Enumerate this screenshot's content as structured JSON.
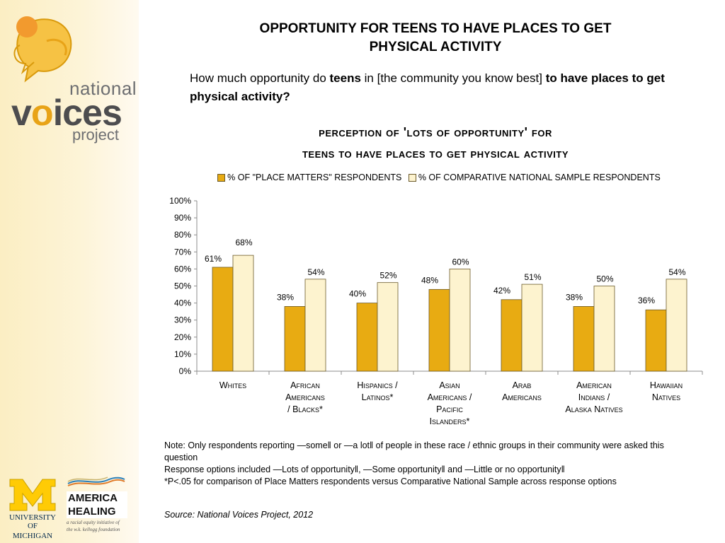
{
  "branding": {
    "logo_national": "national",
    "logo_voices_v": "v",
    "logo_voices_o": "o",
    "logo_voices_rest": "ices",
    "logo_project": "project",
    "umich_line1": "UNIVERSITY OF",
    "umich_line2": "MICHIGAN",
    "america_line1": "AMERICA",
    "america_line2": "HEALING",
    "america_tagline_1": "a racial equity initiative of",
    "america_tagline_2": "the w.k. kellogg foundation"
  },
  "header": {
    "title_line1": "OPPORTUNITY FOR TEENS TO HAVE PLACES TO GET",
    "title_line2": "PHYSICAL ACTIVITY"
  },
  "question": {
    "part1": "How much opportunity do ",
    "bold1": "teens",
    "part2": " in [the community you know best] ",
    "bold2": "to have places to get physical activity?"
  },
  "footer": {
    "note_line1": "Note: Only respondents reporting —some‖ or —a lot‖ of people in these race / ethnic groups in their community were asked this question",
    "note_line2": "Response options included —Lots of opportunity‖, —Some opportunity‖ and —Little or no opportunity‖",
    "note_line3": "*P<.05 for comparison of Place Matters respondents versus Comparative National Sample across response options",
    "source": "Source: National Voices Project, 2012"
  },
  "colors": {
    "series1": "#e8ab12",
    "series2": "#fdf3cf",
    "bar_stroke": "#6b5a2a",
    "axis": "#8c8c8c"
  },
  "chart_data": {
    "type": "bar",
    "title_line1": "perception of 'lots of opportunity' for",
    "title_line2": "teens to have places to get physical activity",
    "categories": [
      [
        "Whites"
      ],
      [
        "African",
        "Americans",
        "/ Blacks*"
      ],
      [
        "Hispanics /",
        "Latinos*"
      ],
      [
        "Asian",
        "Americans /",
        "Pacific",
        "Islanders*"
      ],
      [
        "Arab",
        "Americans"
      ],
      [
        "American",
        "Indians /",
        "Alaska Natives"
      ],
      [
        "Hawaiian",
        "Natives"
      ]
    ],
    "series": [
      {
        "name": "% OF \"PLACE MATTERS\" RESPONDENTS",
        "values": [
          61,
          38,
          40,
          48,
          42,
          38,
          36
        ],
        "labels": [
          "61%",
          "38%",
          "40%",
          "48%",
          "42%",
          "38%",
          "36%"
        ]
      },
      {
        "name": "% OF COMPARATIVE NATIONAL SAMPLE RESPONDENTS",
        "values": [
          68,
          54,
          52,
          60,
          51,
          50,
          54
        ],
        "labels": [
          "68%",
          "54%",
          "52%",
          "60%",
          "51%",
          "50%",
          "54%"
        ]
      }
    ],
    "y_ticks": [
      "0%",
      "10%",
      "20%",
      "30%",
      "40%",
      "50%",
      "60%",
      "70%",
      "80%",
      "90%",
      "100%"
    ],
    "ylim": [
      0,
      100
    ],
    "grid": false,
    "legend_position": "top"
  }
}
